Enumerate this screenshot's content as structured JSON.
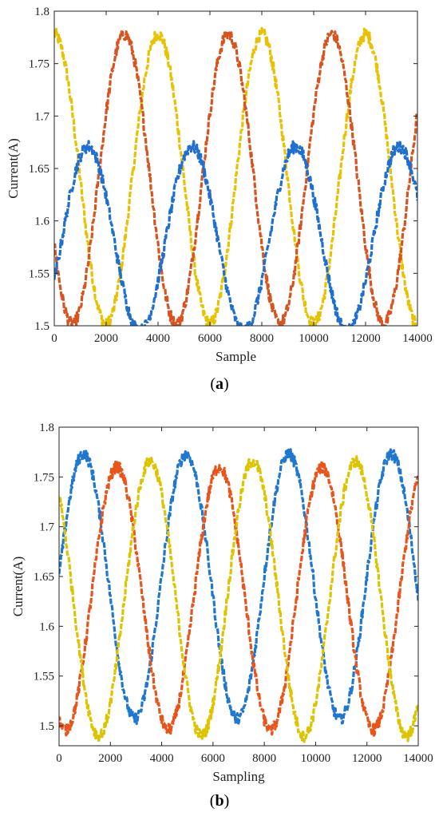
{
  "chart_data": [
    {
      "type": "line",
      "panel": "a",
      "xlabel": "Sample",
      "ylabel": "Current(A)",
      "xlim": [
        0,
        14000
      ],
      "ylim": [
        1.5,
        1.8
      ],
      "xticks": [
        "0",
        "2000",
        "4000",
        "6000",
        "8000",
        "10000",
        "12000",
        "14000"
      ],
      "yticks": [
        "1.5",
        "1.55",
        "1.6",
        "1.65",
        "1.7",
        "1.75",
        "1.8"
      ],
      "grid": false,
      "series": [
        {
          "color": "#e8c200",
          "period": 4000,
          "mean": 1.64,
          "amp": 0.138,
          "peak_at": 0
        },
        {
          "color": "#d9531e",
          "period": 4000,
          "mean": 1.64,
          "amp": 0.138,
          "peak_at": 2700
        },
        {
          "color": "#1f6fd0",
          "period": 4000,
          "mean": 1.583,
          "amp": 0.088,
          "peak_at": 1300
        }
      ],
      "caption_letter": "a"
    },
    {
      "type": "line",
      "panel": "b",
      "xlabel": "Sampling",
      "ylabel": "Current(A)",
      "xlim": [
        0,
        14000
      ],
      "ylim": [
        1.48,
        1.8
      ],
      "xticks": [
        "0",
        "2000",
        "4000",
        "6000",
        "8000",
        "10000",
        "12000",
        "14000"
      ],
      "yticks": [
        "1.5",
        "1.55",
        "1.6",
        "1.65",
        "1.7",
        "1.75",
        "1.8"
      ],
      "grid": false,
      "series": [
        {
          "color": "#1f77d0",
          "period": 4000,
          "mean": 1.64,
          "amp": 0.133,
          "peak_at": 950
        },
        {
          "color": "#e8541a",
          "period": 4000,
          "mean": 1.628,
          "amp": 0.132,
          "peak_at": 2250
        },
        {
          "color": "#dcc400",
          "period": 4000,
          "mean": 1.628,
          "amp": 0.138,
          "peak_at": 3550
        }
      ],
      "caption_letter": "b"
    }
  ],
  "captions": {
    "a": "a",
    "b": "b"
  }
}
